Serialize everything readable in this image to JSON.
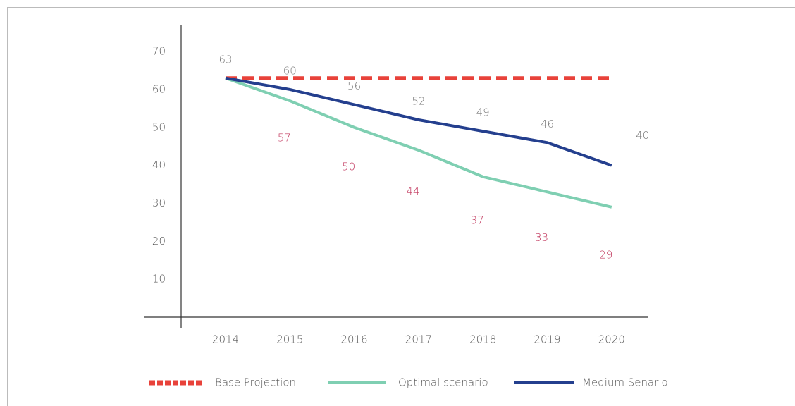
{
  "chart_data": {
    "type": "line",
    "categories": [
      "2014",
      "2015",
      "2016",
      "2017",
      "2018",
      "2019",
      "2020"
    ],
    "series": [
      {
        "name": "Base Projection",
        "color": "#e8423a",
        "dashed": true,
        "values": [
          63,
          63,
          63,
          63,
          63,
          63,
          63
        ]
      },
      {
        "name": "Optimal scenario",
        "color": "#7fcfb2",
        "values": [
          63,
          57,
          50,
          44,
          37,
          33,
          29
        ]
      },
      {
        "name": "Medium Senario",
        "color": "#243f8e",
        "values": [
          63,
          60,
          56,
          52,
          49,
          46,
          40
        ]
      }
    ],
    "ylim": [
      0,
      78
    ],
    "yticks": [
      10,
      20,
      30,
      40,
      50,
      60,
      70
    ],
    "grid": false,
    "legend": "bottom"
  }
}
